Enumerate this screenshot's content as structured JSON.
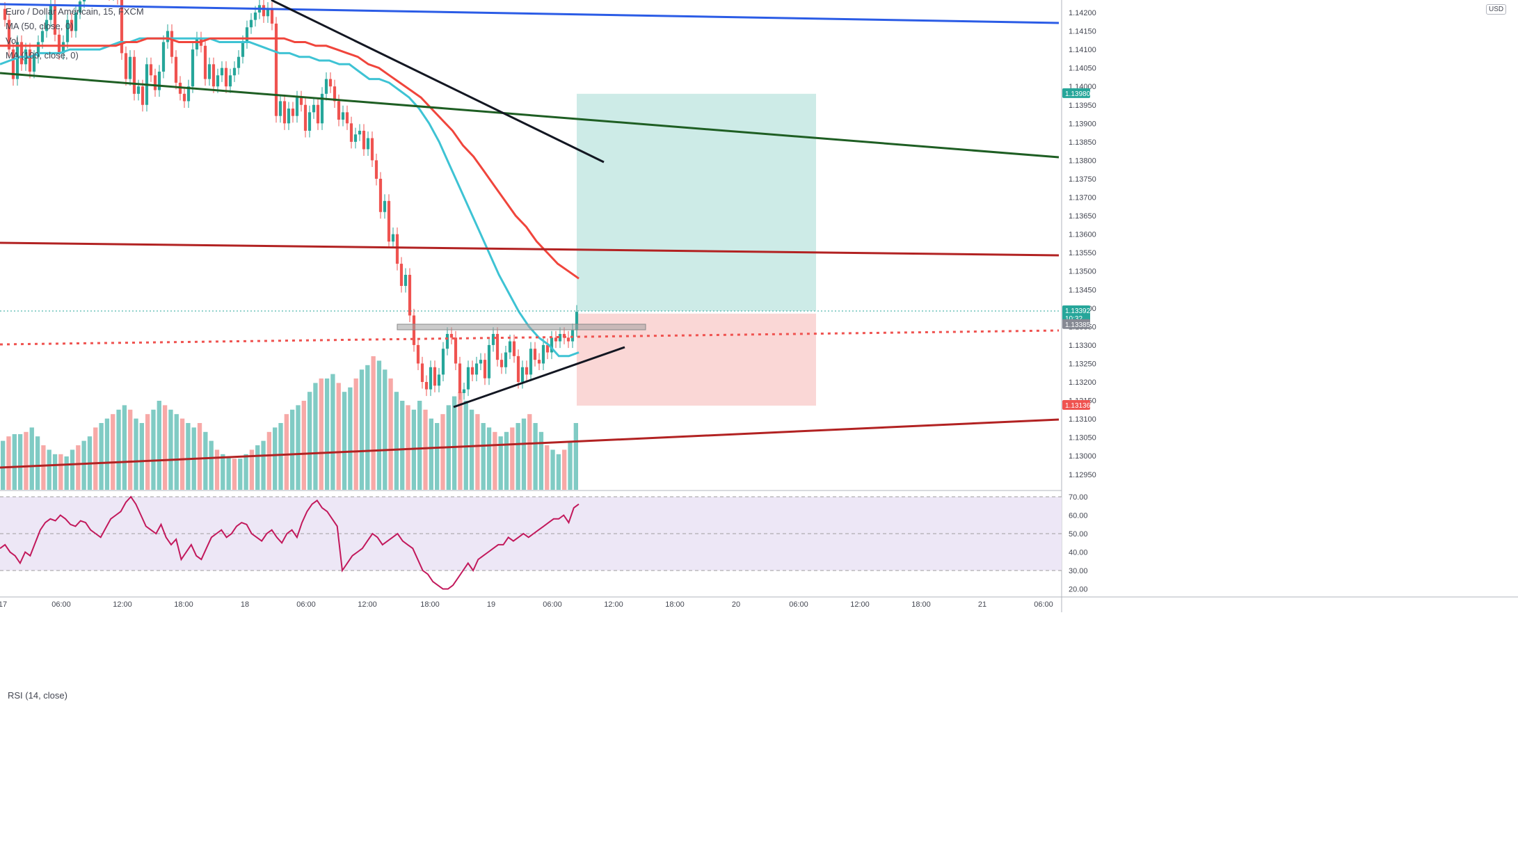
{
  "legend": {
    "symbol": "Euro / Dollar Américain, 15, FXCM",
    "ma50": "MA (50, close, 0)",
    "vol": "Vol",
    "ma100": "MA (100, close, 0)"
  },
  "rsi_legend": "RSI (14, close)",
  "currency": "USD",
  "colors": {
    "up": "#26a69a",
    "down": "#ef5350",
    "vol_up": "#80cbc4",
    "vol_down": "#f7a9a7",
    "ma50": "#3ec3d4",
    "ma100": "#f0453c",
    "blue_line": "#2b5ce6",
    "green_line": "#1e5e23",
    "dark_red_line": "#b22222",
    "black_line": "#131722",
    "rsi_line": "#c2185b",
    "rsi_band": "#ede7f6",
    "target_zone": "#cdebe7",
    "stop_zone": "#fad7d6"
  },
  "chart_data": {
    "type": "candlestick",
    "symbol": "Euro / Dollar Américain",
    "timeframe": "15",
    "source": "FXCM",
    "ylim": [
      1.129,
      1.1422
    ],
    "y_ticks": [
      "1.14200",
      "1.14150",
      "1.14100",
      "1.14050",
      "1.14000",
      "1.13950",
      "1.13900",
      "1.13850",
      "1.13800",
      "1.13750",
      "1.13700",
      "1.13650",
      "1.13600",
      "1.13550",
      "1.13500",
      "1.13450",
      "1.13400",
      "1.13350",
      "1.13300",
      "1.13250",
      "1.13200",
      "1.13150",
      "1.13100",
      "1.13050",
      "1.13000",
      "1.12950"
    ],
    "x_ticks": [
      "17",
      "06:00",
      "12:00",
      "18:00",
      "18",
      "06:00",
      "12:00",
      "18:00",
      "19",
      "06:00",
      "12:00",
      "18:00",
      "20",
      "06:00",
      "12:00",
      "18:00",
      "21",
      "06:00"
    ],
    "price_labels": [
      {
        "value": "1.13980",
        "color": "#26a69a"
      },
      {
        "value": "1.13392",
        "sub": "10:32",
        "color": "#26a69a"
      },
      {
        "value": "1.13385",
        "color": "#868993"
      },
      {
        "value": "1.13136",
        "color": "#ef5350"
      }
    ],
    "candle_closes": [
      1.1418,
      1.141,
      1.1402,
      1.1412,
      1.1406,
      1.141,
      1.1404,
      1.1408,
      1.1412,
      1.1415,
      1.1418,
      1.1422,
      1.1414,
      1.1409,
      1.1412,
      1.1418,
      1.1415,
      1.142,
      1.1423,
      1.1426,
      1.143,
      1.1426,
      1.1428,
      1.1432,
      1.1429,
      1.1425,
      1.1428,
      1.1424,
      1.1409,
      1.1402,
      1.1408,
      1.1398,
      1.14,
      1.1395,
      1.1406,
      1.1403,
      1.1399,
      1.1404,
      1.1412,
      1.1415,
      1.1408,
      1.1401,
      1.1398,
      1.1396,
      1.14,
      1.141,
      1.1413,
      1.1411,
      1.1402,
      1.1406,
      1.14,
      1.1403,
      1.1405,
      1.14,
      1.1403,
      1.1405,
      1.1408,
      1.1412,
      1.1416,
      1.1418,
      1.142,
      1.1422,
      1.1419,
      1.1421,
      1.1417,
      1.1392,
      1.1396,
      1.139,
      1.1394,
      1.1392,
      1.1397,
      1.1395,
      1.1388,
      1.1393,
      1.1395,
      1.139,
      1.1398,
      1.1402,
      1.14,
      1.1396,
      1.1391,
      1.1393,
      1.139,
      1.1385,
      1.1387,
      1.1388,
      1.1383,
      1.1386,
      1.138,
      1.1375,
      1.1366,
      1.1369,
      1.1358,
      1.136,
      1.1352,
      1.1346,
      1.1349,
      1.1338,
      1.133,
      1.1325,
      1.132,
      1.1318,
      1.1324,
      1.1319,
      1.1322,
      1.1329,
      1.1333,
      1.1332,
      1.1325,
      1.1317,
      1.1318,
      1.1324,
      1.1322,
      1.1325,
      1.1326,
      1.1321,
      1.133,
      1.1333,
      1.1326,
      1.1324,
      1.1328,
      1.1331,
      1.1327,
      1.132,
      1.1324,
      1.1322,
      1.1329,
      1.1326,
      1.1325,
      1.133,
      1.1328,
      1.1332,
      1.1331,
      1.1333,
      1.1332,
      1.1331,
      1.1334,
      1.1339
    ],
    "ma50": [
      1.1406,
      1.1407,
      1.1408,
      1.1408,
      1.1409,
      1.1409,
      1.1409,
      1.141,
      1.141,
      1.141,
      1.141,
      1.1411,
      1.1412,
      1.1412,
      1.1413,
      1.1413,
      1.1413,
      1.1413,
      1.1413,
      1.1413,
      1.1413,
      1.1413,
      1.1412,
      1.1412,
      1.1412,
      1.1412,
      1.1411,
      1.141,
      1.1409,
      1.1409,
      1.1408,
      1.1408,
      1.1407,
      1.1407,
      1.1406,
      1.1406,
      1.1404,
      1.1402,
      1.1402,
      1.1401,
      1.1399,
      1.1397,
      1.1394,
      1.139,
      1.1385,
      1.1379,
      1.1373,
      1.1367,
      1.1361,
      1.1355,
      1.1349,
      1.1344,
      1.1339,
      1.1335,
      1.1332,
      1.133,
      1.1327,
      1.1327,
      1.1328
    ],
    "ma100": [
      1.1411,
      1.1411,
      1.1411,
      1.1411,
      1.1411,
      1.1411,
      1.1411,
      1.1411,
      1.1411,
      1.1411,
      1.1411,
      1.1411,
      1.1412,
      1.1412,
      1.1413,
      1.1413,
      1.1413,
      1.1412,
      1.1412,
      1.1412,
      1.1413,
      1.1413,
      1.1413,
      1.1413,
      1.1413,
      1.1413,
      1.1413,
      1.1413,
      1.1412,
      1.1412,
      1.1411,
      1.1411,
      1.141,
      1.1409,
      1.1408,
      1.1406,
      1.1405,
      1.1403,
      1.1401,
      1.1399,
      1.1397,
      1.1394,
      1.1391,
      1.1388,
      1.1384,
      1.1381,
      1.1377,
      1.1373,
      1.1369,
      1.1365,
      1.1362,
      1.1358,
      1.1355,
      1.1352,
      1.135,
      1.1348
    ],
    "rsi": {
      "levels": [
        70,
        50,
        30
      ],
      "y_ticks": [
        "70.00",
        "60.00",
        "50.00",
        "40.00",
        "30.00",
        "20.00"
      ],
      "ylim": [
        15,
        75
      ],
      "values": [
        42,
        44,
        40,
        38,
        34,
        40,
        38,
        45,
        52,
        56,
        58,
        57,
        60,
        58,
        55,
        54,
        57,
        56,
        52,
        50,
        48,
        53,
        58,
        60,
        62,
        67,
        70,
        66,
        60,
        54,
        52,
        50,
        55,
        48,
        44,
        47,
        36,
        40,
        44,
        38,
        36,
        42,
        48,
        50,
        52,
        48,
        50,
        54,
        56,
        55,
        50,
        48,
        46,
        50,
        52,
        48,
        45,
        50,
        52,
        48,
        56,
        62,
        66,
        68,
        64,
        62,
        58,
        54,
        30,
        34,
        38,
        40,
        42,
        46,
        50,
        48,
        44,
        46,
        48,
        50,
        46,
        44,
        42,
        36,
        30,
        28,
        24,
        22,
        20,
        20,
        22,
        26,
        30,
        34,
        30,
        36,
        38,
        40,
        42,
        44,
        44,
        48,
        46,
        48,
        50,
        48,
        50,
        52,
        54,
        56,
        58,
        58,
        60,
        56,
        64,
        66
      ]
    },
    "volume": [
      22,
      24,
      25,
      25,
      26,
      28,
      24,
      20,
      18,
      16,
      16,
      15,
      18,
      20,
      22,
      24,
      28,
      30,
      32,
      34,
      36,
      38,
      36,
      32,
      30,
      34,
      36,
      40,
      38,
      36,
      34,
      32,
      30,
      28,
      30,
      26,
      22,
      18,
      16,
      15,
      14,
      14,
      16,
      18,
      20,
      22,
      26,
      28,
      30,
      34,
      36,
      38,
      40,
      44,
      48,
      50,
      50,
      52,
      48,
      44,
      46,
      50,
      54,
      56,
      60,
      58,
      54,
      50,
      44,
      40,
      38,
      36,
      40,
      36,
      32,
      30,
      34,
      38,
      42,
      44,
      40,
      36,
      34,
      30,
      28,
      26,
      24,
      26,
      28,
      30,
      32,
      34,
      30,
      26,
      20,
      18,
      16,
      18,
      22,
      30
    ]
  }
}
